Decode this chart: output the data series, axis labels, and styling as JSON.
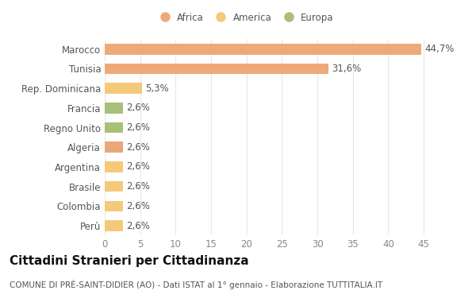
{
  "categories": [
    "Perù",
    "Colombia",
    "Brasile",
    "Argentina",
    "Algeria",
    "Regno Unito",
    "Francia",
    "Rep. Dominicana",
    "Tunisia",
    "Marocco"
  ],
  "values": [
    2.6,
    2.6,
    2.6,
    2.6,
    2.6,
    2.6,
    2.6,
    5.3,
    31.6,
    44.7
  ],
  "labels": [
    "2,6%",
    "2,6%",
    "2,6%",
    "2,6%",
    "2,6%",
    "2,6%",
    "2,6%",
    "5,3%",
    "31,6%",
    "44,7%"
  ],
  "colors": [
    "#F5C97A",
    "#F5C97A",
    "#F5C97A",
    "#F5C97A",
    "#E8A87A",
    "#A8C078",
    "#A8C078",
    "#F5C97A",
    "#EDAA78",
    "#EDAA78"
  ],
  "legend": [
    {
      "label": "Africa",
      "color": "#EDAA78"
    },
    {
      "label": "America",
      "color": "#F5C97A"
    },
    {
      "label": "Europa",
      "color": "#A8C078"
    }
  ],
  "title": "Cittadini Stranieri per Cittadinanza",
  "subtitle": "COMUNE DI PRÉ-SAINT-DIDIER (AO) - Dati ISTAT al 1° gennaio - Elaborazione TUTTITALIA.IT",
  "xlim": [
    0,
    47
  ],
  "xticks": [
    0,
    5,
    10,
    15,
    20,
    25,
    30,
    35,
    40,
    45
  ],
  "background_color": "#ffffff",
  "grid_color": "#e8e8e8",
  "bar_height": 0.55,
  "label_fontsize": 8.5,
  "tick_fontsize": 8.5,
  "ytick_fontsize": 8.5,
  "title_fontsize": 11,
  "subtitle_fontsize": 7.5
}
